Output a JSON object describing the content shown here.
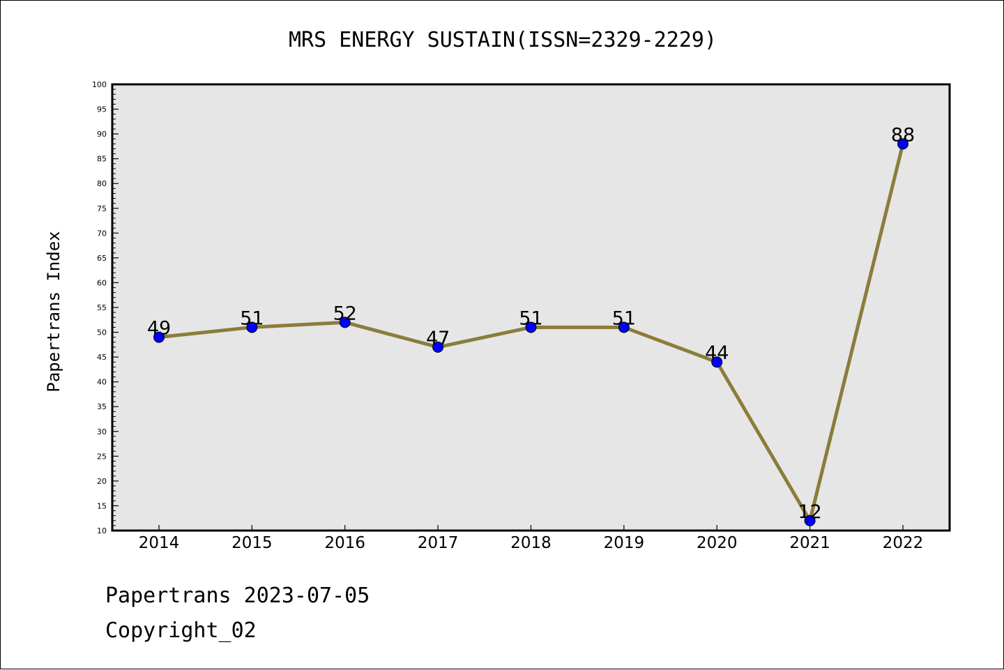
{
  "chart_data": {
    "type": "line",
    "title": "MRS ENERGY SUSTAIN(ISSN=2329-2229)",
    "ylabel": "Papertrans Index",
    "xlabel": "",
    "categories": [
      "2014",
      "2015",
      "2016",
      "2017",
      "2018",
      "2019",
      "2020",
      "2021",
      "2022"
    ],
    "values": [
      49,
      51,
      52,
      47,
      51,
      51,
      44,
      12,
      88
    ],
    "data_labels": [
      "49",
      "51",
      "52",
      "47",
      "51",
      "51",
      "44",
      "12",
      "88"
    ],
    "ylim": [
      10,
      100
    ],
    "yticks": [
      10,
      15,
      20,
      25,
      30,
      35,
      40,
      45,
      50,
      55,
      60,
      65,
      70,
      75,
      80,
      85,
      90,
      95,
      100
    ],
    "grid": false,
    "colors": {
      "line": "#8B7D3A",
      "marker": "#0000FF",
      "plot_background": "#E6E6E6"
    }
  },
  "footer": {
    "date_text": "Papertrans 2023-07-05",
    "copyright_text": "Copyright_02"
  }
}
